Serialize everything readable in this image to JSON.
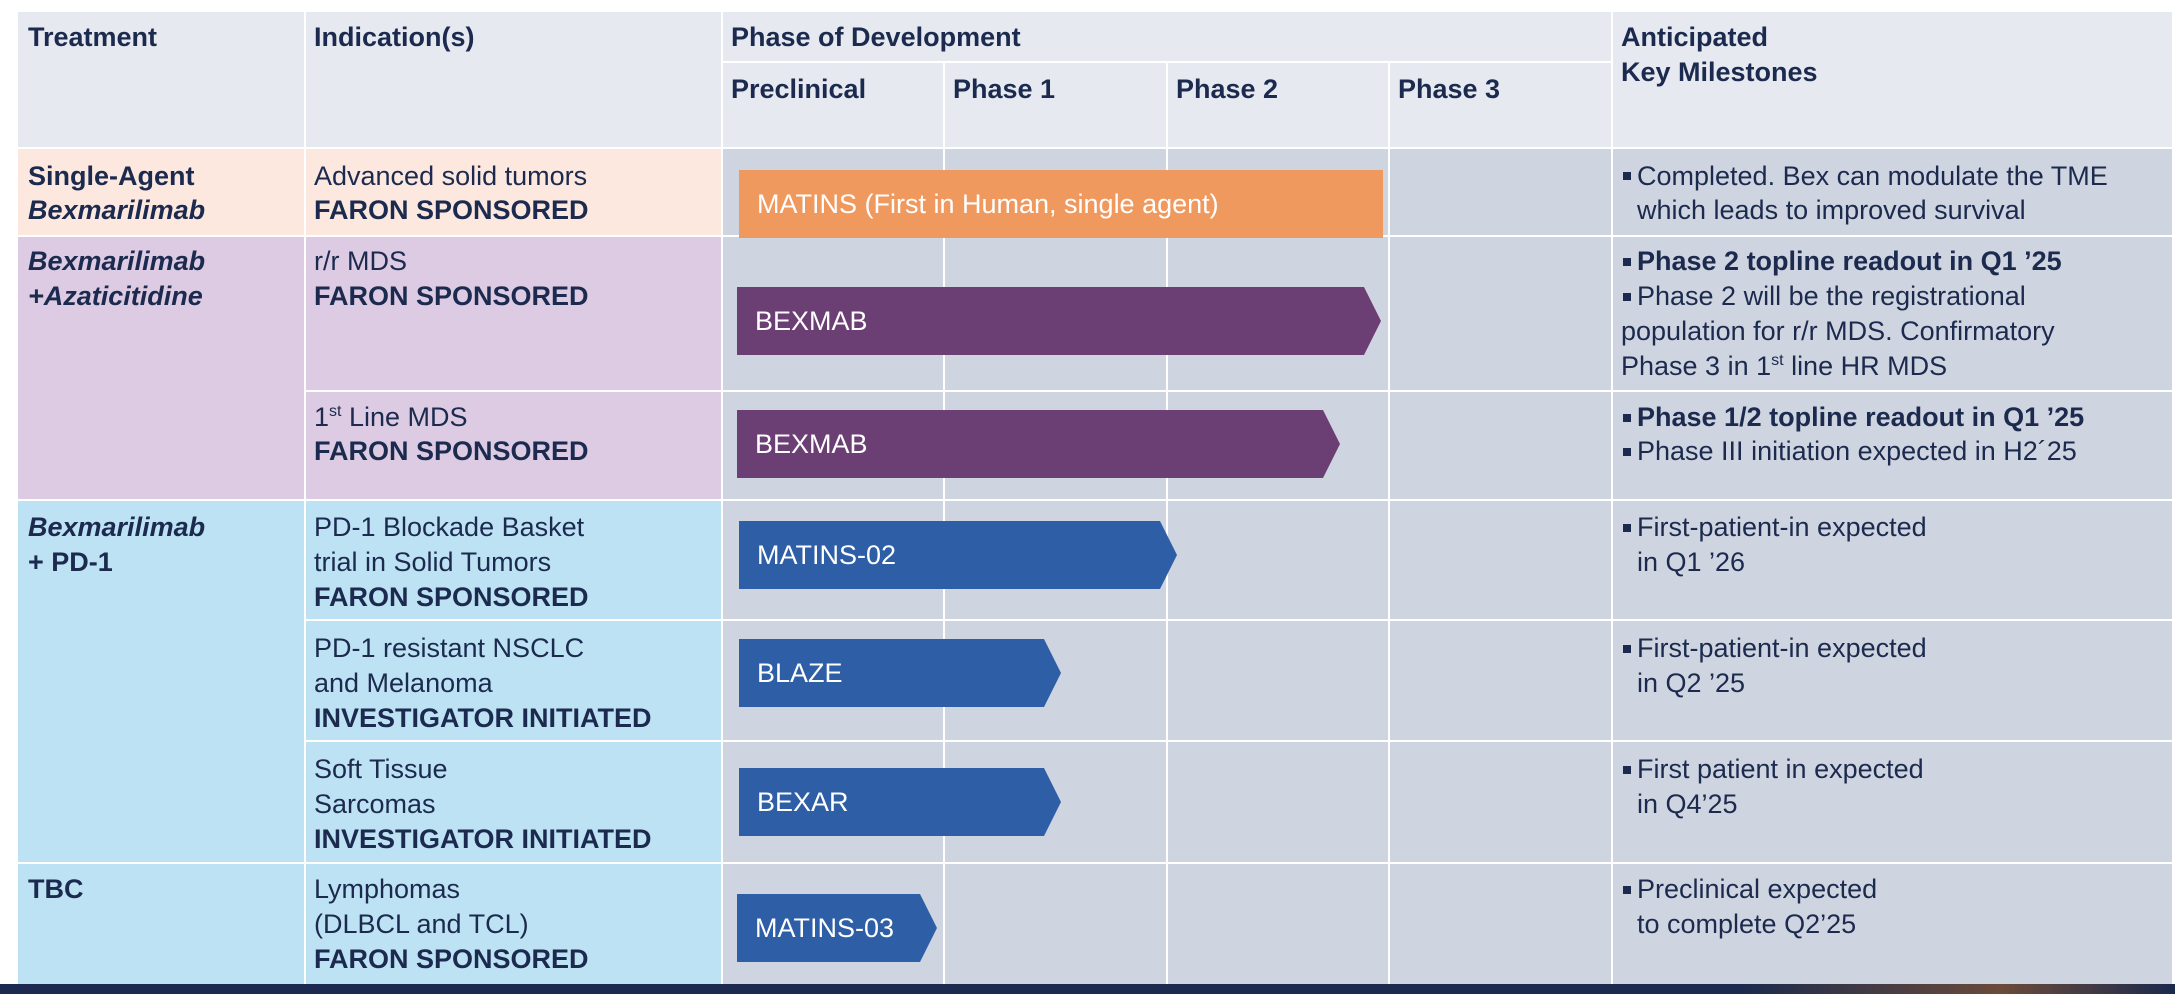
{
  "header": {
    "treatment": "Treatment",
    "indications": "Indication(s)",
    "phase_of_development": "Phase of Development",
    "phases": [
      "Preclinical",
      "Phase 1",
      "Phase 2",
      "Phase 3"
    ],
    "milestones_line1": "Anticipated",
    "milestones_line2": "Key Milestones"
  },
  "colors": {
    "header_bg": "#e6e9ef",
    "single_agent_bg": "#fce8de",
    "aza_bg": "#dccbe2",
    "pd1_bg": "#bde2f3",
    "phase_area_bg": "#cfd5e0",
    "milestone_bg": "#cfd5e0",
    "orange_bar": "#f0995f",
    "purple_bar": "#6b3e74",
    "blue_bar": "#2e5ea6",
    "footer": "#1b2a4e"
  },
  "rows": [
    {
      "treatment": {
        "line1": "Single-Agent",
        "line2": "Bexmarilimab"
      },
      "indication": {
        "line1": "Advanced solid tumors",
        "sponsor": "FARON SPONSORED"
      },
      "program": "MATINS (First in Human, single agent)",
      "milestones": [
        {
          "text1": "Completed. Bex can modulate the TME",
          "text2": "which leads to improved survival",
          "bold": false
        }
      ]
    },
    {
      "treatment": {
        "line1": "Bexmarilimab",
        "line2": "+Azaticitidine"
      },
      "indication": {
        "line1": "r/r MDS",
        "sponsor": "FARON SPONSORED"
      },
      "program": "BEXMAB",
      "milestones": [
        {
          "text1": "Phase 2 topline readout in Q1 ’25",
          "bold": true
        },
        {
          "text1": "Phase 2 will be the registrational",
          "text2": "population for r/r MDS. Confirmatory",
          "text3a": "Phase 3 in 1",
          "text3sup": "st",
          "text3b": " line HR MDS",
          "bold": false
        }
      ]
    },
    {
      "indication": {
        "line1a": "1",
        "line1sup": "st",
        "line1b": " Line MDS",
        "sponsor": "FARON SPONSORED"
      },
      "program": "BEXMAB",
      "milestones": [
        {
          "text1": "Phase 1/2 topline readout in Q1 ’25",
          "bold": true
        },
        {
          "text1": "Phase III initiation expected in H2´25",
          "bold": false
        }
      ]
    },
    {
      "treatment": {
        "line1": "Bexmarilimab",
        "line2": "+ PD-1"
      },
      "indication": {
        "line1": "PD-1 Blockade Basket",
        "line2": "trial in Solid Tumors",
        "sponsor": "FARON SPONSORED"
      },
      "program": "MATINS-02",
      "milestones": [
        {
          "text1": "First-patient-in expected",
          "text2": "in Q1 ’26",
          "bold": false
        }
      ]
    },
    {
      "indication": {
        "line1": "PD-1 resistant NSCLC",
        "line2": "and Melanoma",
        "sponsor": "INVESTIGATOR INITIATED"
      },
      "program": "BLAZE",
      "milestones": [
        {
          "text1": "First-patient-in expected",
          "text2": "in Q2 ’25",
          "bold": false
        }
      ]
    },
    {
      "indication": {
        "line1": "Soft Tissue",
        "line2": "Sarcomas",
        "sponsor": "INVESTIGATOR INITIATED"
      },
      "program": "BEXAR",
      "milestones": [
        {
          "text1": "First patient in expected",
          "text2": "in Q4’25",
          "bold": false
        }
      ]
    },
    {
      "treatment": {
        "line1": "TBC"
      },
      "indication": {
        "line1": "Lymphomas",
        "line2": "(DLBCL and TCL)",
        "sponsor": "FARON SPONSORED"
      },
      "program": "MATINS-03",
      "milestones": [
        {
          "text1": "Preclinical expected",
          "text2": "to complete Q2’25",
          "bold": false
        }
      ]
    }
  ]
}
